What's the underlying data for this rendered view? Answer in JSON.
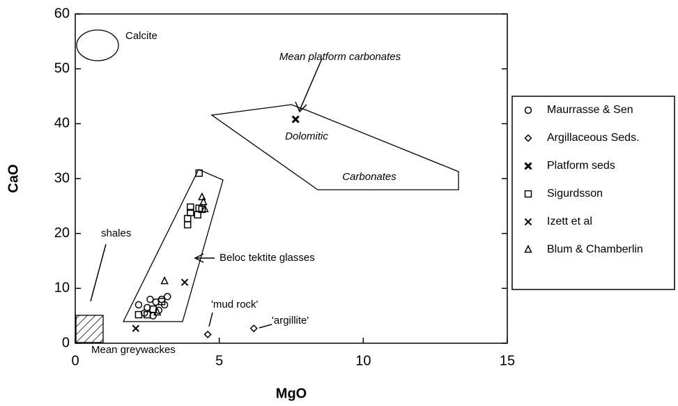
{
  "chart_data": {
    "type": "scatter",
    "x_label": "MgO",
    "y_label": "CaO",
    "xlim": [
      0,
      15
    ],
    "ylim": [
      0,
      60
    ],
    "xticks": [
      0,
      5,
      10,
      15
    ],
    "yticks": [
      0,
      10,
      20,
      30,
      40,
      50,
      60
    ],
    "annotations": [
      "Calcite",
      "Mean platform carbonates",
      "Dolomitic",
      "Carbonates",
      "shales",
      "Beloc tektite glasses",
      "'mud rock'",
      "'argillite'",
      "Mean greywackes"
    ],
    "series": [
      {
        "name": "Maurrasse & Sen",
        "marker": "circle",
        "color": "#000",
        "x": [
          2.2,
          2.5,
          2.6,
          2.8,
          2.9,
          3.0,
          3.1,
          3.2,
          2.4,
          2.7
        ],
        "values": [
          7,
          6.5,
          8,
          7.5,
          6,
          8,
          7,
          8.5,
          5.5,
          5
        ]
      },
      {
        "name": "Argillaceous Seds.",
        "marker": "diamond",
        "color": "#000",
        "x": [
          4.6,
          6.2
        ],
        "values": [
          1.6,
          2.7
        ]
      },
      {
        "name": "Platform seds",
        "marker": "boldx",
        "color": "#000",
        "x": [
          7.65
        ],
        "values": [
          40.8
        ]
      },
      {
        "name": "Sigurdsson",
        "marker": "square",
        "color": "#000",
        "x": [
          4.3,
          4.0,
          4.0,
          3.9,
          3.9,
          4.3,
          4.25,
          4.4,
          2.2,
          2.5,
          3.0,
          2.7
        ],
        "values": [
          31,
          24.8,
          23.8,
          22.7,
          21.6,
          24.6,
          23.4,
          24.4,
          5.2,
          5.2,
          7.6,
          6.2
        ]
      },
      {
        "name": "Izett et al",
        "marker": "x",
        "color": "#000",
        "x": [
          2.1,
          3.8
        ],
        "values": [
          2.7,
          11.1
        ]
      },
      {
        "name": "Blum & Chamberlin",
        "marker": "triangle",
        "color": "#000",
        "x": [
          3.1,
          4.4,
          4.45,
          4.5,
          2.85
        ],
        "values": [
          11.3,
          26.6,
          25.7,
          24.4,
          5.6
        ]
      }
    ]
  }
}
